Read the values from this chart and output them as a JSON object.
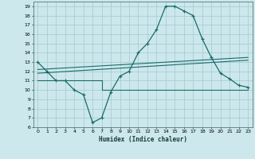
{
  "xlabel": "Humidex (Indice chaleur)",
  "background_color": "#cce8ec",
  "grid_color": "#aacdd4",
  "line_color": "#1a6b6b",
  "xlim": [
    -0.5,
    23.5
  ],
  "ylim": [
    6,
    19.5
  ],
  "yticks": [
    6,
    7,
    8,
    9,
    10,
    11,
    12,
    13,
    14,
    15,
    16,
    17,
    18,
    19
  ],
  "xticks": [
    0,
    1,
    2,
    3,
    4,
    5,
    6,
    7,
    8,
    9,
    10,
    11,
    12,
    13,
    14,
    15,
    16,
    17,
    18,
    19,
    20,
    21,
    22,
    23
  ],
  "line1_x": [
    0,
    1,
    2,
    3,
    4,
    5,
    6,
    7,
    8,
    9,
    10,
    11,
    12,
    13,
    14,
    15,
    16,
    17,
    18,
    19,
    20,
    21,
    22,
    23
  ],
  "line1_y": [
    13,
    12,
    11,
    11,
    10,
    9.5,
    6.5,
    7.0,
    9.8,
    11.5,
    12,
    14,
    15,
    16.5,
    19,
    19,
    18.5,
    18,
    15.5,
    13.5,
    11.8,
    11.2,
    10.5,
    10.3
  ],
  "line2_x": [
    0,
    1,
    2,
    3,
    4,
    5,
    6,
    7,
    8,
    9,
    10,
    11,
    12,
    13,
    14,
    15,
    16,
    17,
    18,
    19,
    20,
    21,
    22,
    23
  ],
  "line2_y": [
    11,
    11,
    11,
    11,
    11,
    11,
    11,
    10,
    10,
    10,
    10,
    10,
    10,
    10,
    10,
    10,
    10,
    10,
    10,
    10,
    10,
    10,
    10,
    10
  ],
  "line3_x": [
    0,
    23
  ],
  "line3_y": [
    11.8,
    13.2
  ],
  "line4_x": [
    0,
    23
  ],
  "line4_y": [
    12.2,
    13.5
  ]
}
